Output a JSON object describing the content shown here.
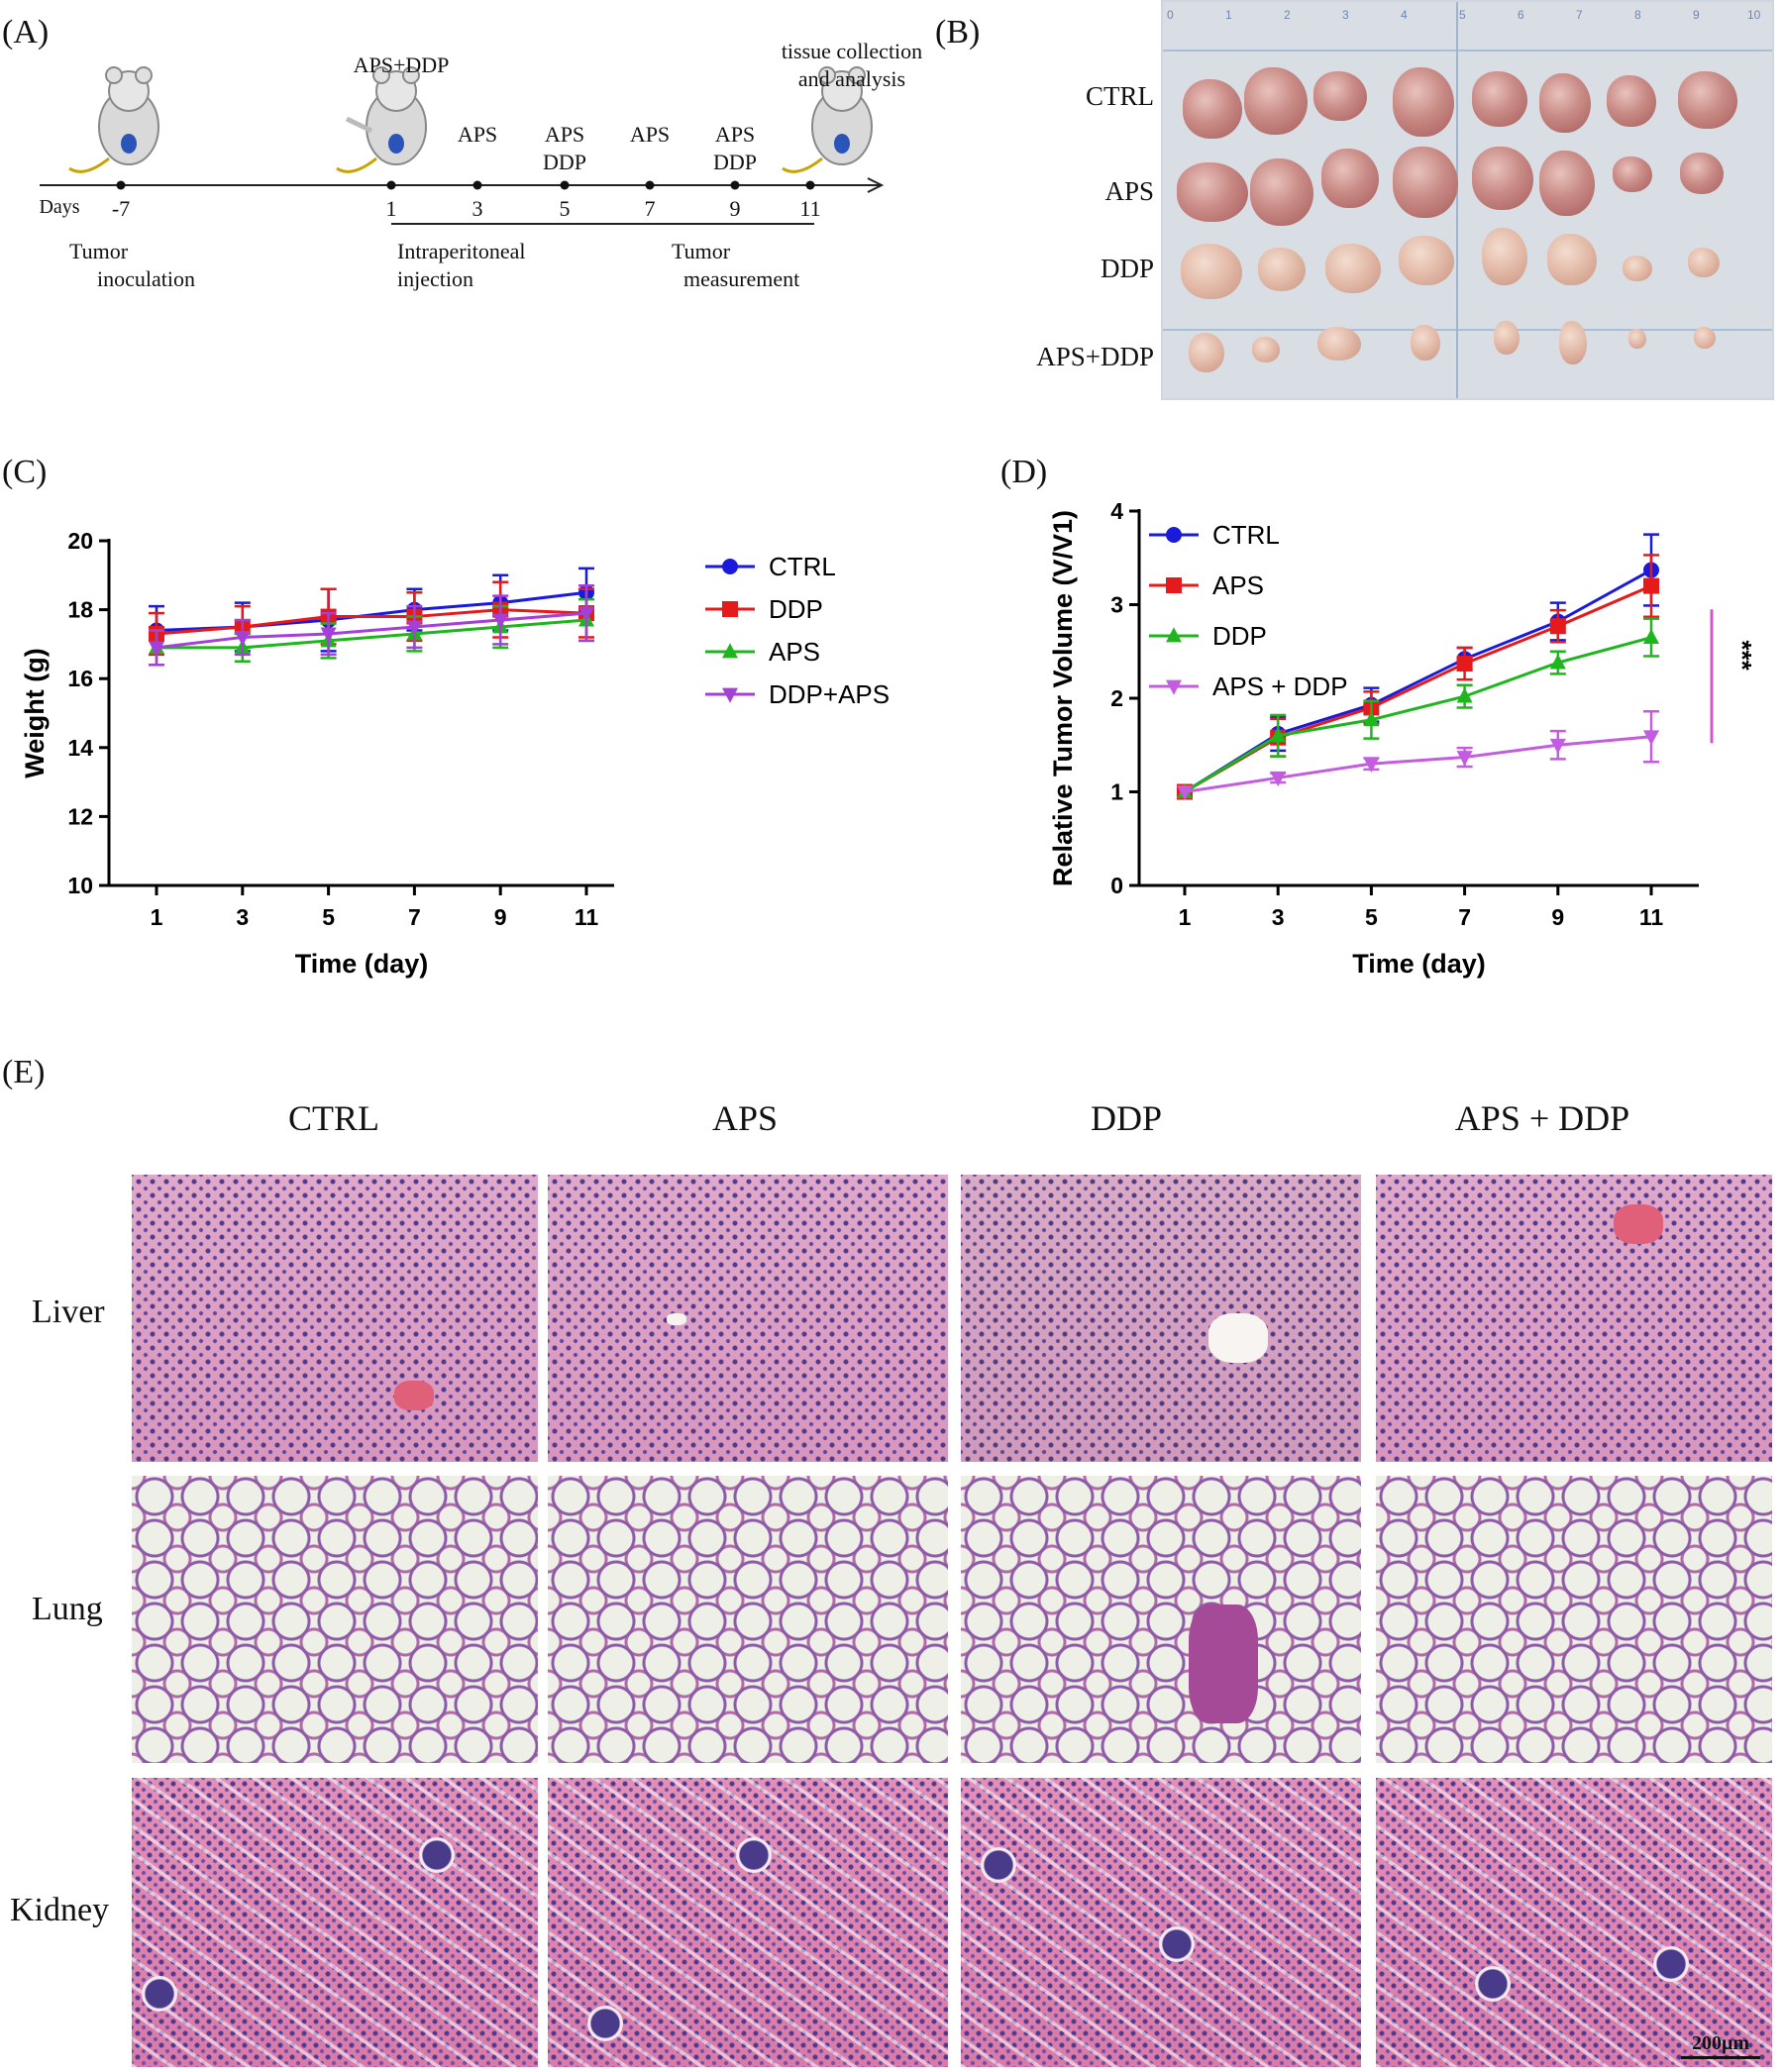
{
  "panel_labels": {
    "a": "(A)",
    "b": "(B)",
    "c": "(C)",
    "d": "(D)",
    "e": "(E)"
  },
  "timeline": {
    "days_label": "Days",
    "ticks": [
      "-7",
      "1",
      "3",
      "5",
      "7",
      "9",
      "11"
    ],
    "above": {
      "d1": "APS+DDP",
      "d3": "APS",
      "d5_1": "APS",
      "d5_2": "DDP",
      "d7": "APS",
      "d9_1": "APS",
      "d9_2": "DDP",
      "d11_1": "tissue collection",
      "d11_2": "and analysis"
    },
    "below": {
      "tumor_1": "Tumor",
      "tumor_2": "inoculation",
      "ip_1": "Intraperitoneal",
      "ip_2": "injection",
      "tm_1": "Tumor",
      "tm_2": "measurement"
    }
  },
  "photo_groups": [
    "CTRL",
    "APS",
    "DDP",
    "APS+DDP"
  ],
  "ruler_ticks": [
    "0",
    "1",
    "2",
    "3",
    "4",
    "5",
    "6",
    "7",
    "8",
    "9",
    "10"
  ],
  "chart_data": [
    {
      "type": "line",
      "panel": "(C)",
      "xlabel": "Time (day)",
      "ylabel": "Weight (g)",
      "x": [
        1,
        3,
        5,
        7,
        9,
        11
      ],
      "xticks": [
        "1",
        "3",
        "5",
        "7",
        "9",
        "11"
      ],
      "yticks": [
        "10",
        "12",
        "14",
        "16",
        "18",
        "20"
      ],
      "ylim": [
        10,
        20
      ],
      "legend": "right",
      "series": [
        {
          "name": "CTRL",
          "color": "#1a1adb",
          "marker": "circle",
          "values": [
            17.4,
            17.5,
            17.7,
            18.0,
            18.2,
            18.5
          ],
          "err": [
            0.7,
            0.7,
            0.9,
            0.6,
            0.8,
            0.7
          ]
        },
        {
          "name": "DDP",
          "color": "#e51a1a",
          "marker": "square",
          "values": [
            17.3,
            17.5,
            17.8,
            17.8,
            18.0,
            17.9
          ],
          "err": [
            0.6,
            0.6,
            0.8,
            0.7,
            0.8,
            0.7
          ]
        },
        {
          "name": "APS",
          "color": "#1fb51f",
          "marker": "triangle-up",
          "values": [
            16.9,
            16.9,
            17.1,
            17.3,
            17.5,
            17.7
          ],
          "err": [
            0.5,
            0.4,
            0.5,
            0.5,
            0.6,
            0.6
          ]
        },
        {
          "name": "DDP+APS",
          "color": "#a540d6",
          "marker": "triangle-down",
          "values": [
            16.9,
            17.2,
            17.3,
            17.5,
            17.7,
            17.9
          ],
          "err": [
            0.5,
            0.5,
            0.6,
            0.6,
            0.7,
            0.8
          ]
        }
      ]
    },
    {
      "type": "line",
      "panel": "(D)",
      "xlabel": "Time (day)",
      "ylabel": "Relative Tumor Volume (V/V1)",
      "x": [
        1,
        3,
        5,
        7,
        9,
        11
      ],
      "xticks": [
        "1",
        "3",
        "5",
        "7",
        "9",
        "11"
      ],
      "yticks": [
        "0",
        "1",
        "2",
        "3",
        "4"
      ],
      "ylim": [
        0,
        4
      ],
      "legend": "top-left",
      "annotation": "***",
      "series": [
        {
          "name": "CTRL",
          "color": "#1a1adb",
          "marker": "circle",
          "values": [
            1.0,
            1.62,
            1.93,
            2.42,
            2.82,
            3.37
          ],
          "err": [
            0.02,
            0.18,
            0.18,
            0.12,
            0.2,
            0.38
          ]
        },
        {
          "name": "APS",
          "color": "#e51a1a",
          "marker": "square",
          "values": [
            1.0,
            1.58,
            1.9,
            2.37,
            2.77,
            3.2
          ],
          "err": [
            0.02,
            0.2,
            0.17,
            0.17,
            0.17,
            0.33
          ]
        },
        {
          "name": "DDP",
          "color": "#1fb51f",
          "marker": "triangle-up",
          "values": [
            1.0,
            1.6,
            1.77,
            2.02,
            2.38,
            2.65
          ],
          "err": [
            0.02,
            0.22,
            0.2,
            0.12,
            0.12,
            0.2
          ]
        },
        {
          "name": "APS + DDP",
          "color": "#c35ce0",
          "marker": "triangle-down",
          "values": [
            1.0,
            1.15,
            1.3,
            1.37,
            1.5,
            1.59
          ],
          "err": [
            0.02,
            0.05,
            0.06,
            0.1,
            0.15,
            0.27
          ]
        }
      ]
    }
  ],
  "histology": {
    "columns": [
      "CTRL",
      "APS",
      "DDP",
      "APS + DDP"
    ],
    "rows": [
      "Liver",
      "Lung",
      "Kidney"
    ],
    "scale_bar": "200μm"
  }
}
